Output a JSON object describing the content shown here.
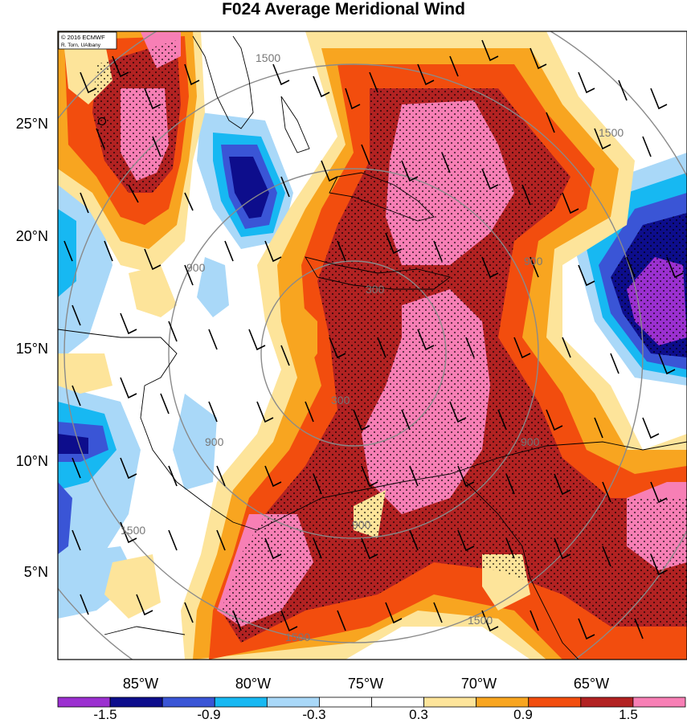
{
  "title": "F024 Average Meridional Wind",
  "credit": {
    "line1": "© 2016 ECMWF",
    "line2": "R. Torn, UAlbany"
  },
  "lat_labels": [
    "25°N",
    "20°N",
    "15°N",
    "10°N",
    "5°N"
  ],
  "lon_labels": [
    "85°W",
    "80°W",
    "75°W",
    "70°W",
    "65°W"
  ],
  "range_ring_labels": [
    "300",
    "900",
    "1500"
  ],
  "colorbar": {
    "ticks": [
      "-1.5",
      "-0.9",
      "-0.3",
      "0.3",
      "0.9",
      "1.5"
    ],
    "colors": [
      "#9b30d0",
      "#0d0d8c",
      "#3a55d6",
      "#17b8f2",
      "#a9d8f8",
      "#ffffff",
      "#ffffff",
      "#fde49a",
      "#f8a520",
      "#f24d0e",
      "#b22222",
      "#f77fb5"
    ]
  }
}
